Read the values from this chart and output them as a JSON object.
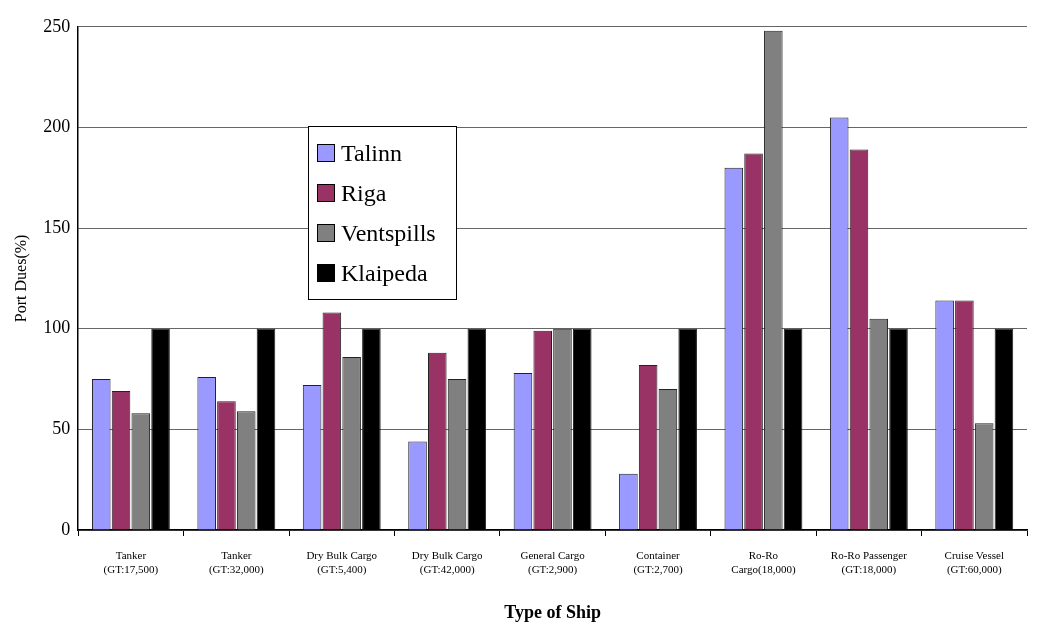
{
  "chart_data": {
    "type": "bar",
    "xlabel": "Type of Ship",
    "ylabel": "Port Dues(%)",
    "categories": [
      "Tanker\n(GT:17,500)",
      "Tanker\n(GT:32,000)",
      "Dry Bulk Cargo\n(GT:5,400)",
      "Dry Bulk Cargo\n(GT:42,000)",
      "General Cargo\n(GT:2,900)",
      "Container\n(GT:2,700)",
      "Ro-Ro\nCargo(18,000)",
      "Ro-Ro Passenger\n(GT:18,000)",
      "Cruise Vessel\n(GT:60,000)"
    ],
    "series": [
      {
        "name": "Talinn",
        "color": "#9999ff",
        "values": [
          75,
          76,
          72,
          44,
          78,
          28,
          180,
          205,
          114
        ]
      },
      {
        "name": "Riga",
        "color": "#993366",
        "values": [
          69,
          64,
          108,
          88,
          99,
          82,
          187,
          189,
          114
        ]
      },
      {
        "name": "Ventspills",
        "color": "#808080",
        "values": [
          58,
          59,
          86,
          75,
          100,
          70,
          248,
          105,
          53
        ]
      },
      {
        "name": "Klaipeda",
        "color": "#000000",
        "values": [
          100,
          100,
          100,
          100,
          100,
          100,
          100,
          100,
          100
        ]
      }
    ],
    "ylim": [
      0,
      250
    ],
    "yticks": [
      0,
      50,
      100,
      150,
      200,
      250
    ],
    "grid": "y",
    "legend": "top left"
  }
}
